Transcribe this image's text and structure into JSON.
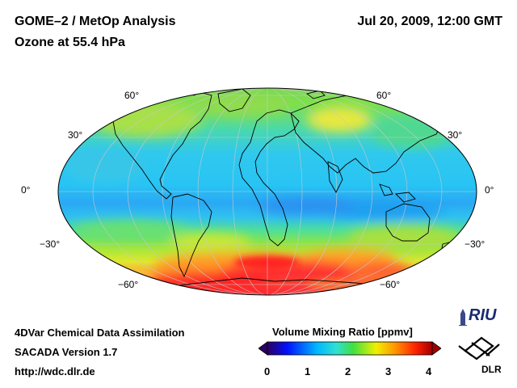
{
  "header": {
    "title_line1": "GOME–2 / MetOp Analysis",
    "title_line2": "Ozone at 55.4 hPa",
    "datetime": "Jul 20, 2009, 12:00 GMT"
  },
  "map": {
    "projection": "Mollweide",
    "latitude_labels_left": [
      "60°",
      "30°",
      "0°",
      "−30°",
      "−60°"
    ],
    "latitude_labels_right": [
      "60°",
      "30°",
      "0°",
      "−30°",
      "−60°"
    ],
    "graticule": true,
    "coastlines": true
  },
  "colorbar": {
    "title": "Volume Mixing Ratio [ppmv]",
    "ticks": [
      "0",
      "1",
      "2",
      "3",
      "4"
    ],
    "range": [
      0,
      4
    ],
    "colors": [
      "#2b0060",
      "#0010ff",
      "#00b8ff",
      "#30e0d0",
      "#40e040",
      "#f0f000",
      "#ff9000",
      "#ff2000",
      "#a00000"
    ]
  },
  "footer": {
    "line1": "4DVar Chemical Data Assimilation",
    "line2": "SACADA Version 1.7",
    "line3": "http://wdc.dlr.de"
  },
  "logos": {
    "riu": "RIU",
    "dlr": "DLR"
  }
}
